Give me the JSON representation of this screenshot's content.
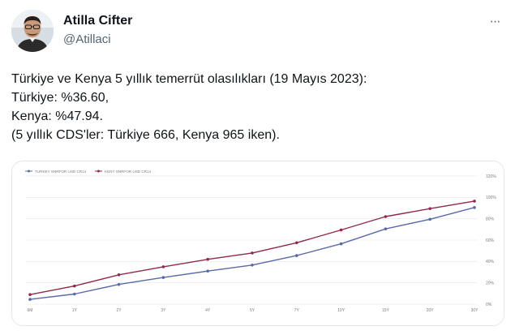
{
  "author": {
    "name": "Atilla Cifter",
    "handle": "@Atillaci",
    "avatar_icon": "user-avatar-photo"
  },
  "menu": {
    "more_icon": "more-horizontal-icon",
    "label": "···"
  },
  "tweet": {
    "lines": [
      "Türkiye ve Kenya 5 yıllık temerrüt olasılıkları (19 Mayıs 2023):",
      "Türkiye: %36.60,",
      "Kenya: %47.94.",
      "(5 yıllık CDS'ler: Türkiye 666, Kenya 965 iken)."
    ]
  },
  "chart_data": {
    "type": "line",
    "categories": [
      "6M",
      "1Y",
      "2Y",
      "3Y",
      "4Y",
      "5Y",
      "7Y",
      "10Y",
      "15Y",
      "20Y",
      "30Y"
    ],
    "series": [
      {
        "name": "TURKEY SNRFOR USD CR14",
        "color": "#5a6aa8",
        "values": [
          4.5,
          9.5,
          18.5,
          25,
          31,
          36.6,
          45.5,
          56.5,
          70.5,
          79.5,
          90.5
        ]
      },
      {
        "name": "KENY SNRFOR USD CR14",
        "color": "#8e2a4e",
        "values": [
          9,
          17,
          27.5,
          35,
          42,
          47.9,
          57.5,
          69.5,
          82,
          89.5,
          96.5
        ]
      }
    ],
    "y_ticks": [
      "0%",
      "20%",
      "40%",
      "60%",
      "80%",
      "100%",
      "120%"
    ],
    "ylim": [
      0,
      120
    ],
    "grid": true,
    "legend": "top-left"
  }
}
